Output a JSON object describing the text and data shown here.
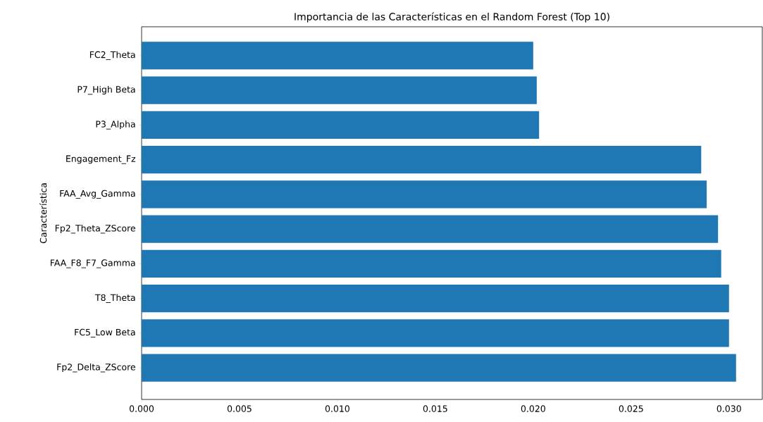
{
  "chart_data": {
    "type": "bar",
    "orientation": "horizontal",
    "title": "Importancia de las Características en el Random Forest (Top 10)",
    "ylabel": "Característica",
    "categories": [
      "FC2_Theta",
      "P7_High Beta",
      "P3_Alpha",
      "Engagement_Fz",
      "FAA_Avg_Gamma",
      "Fp2_Theta_ZScore",
      "FAA_F8_F7_Gamma",
      "T8_Theta",
      "FC5_Low Beta",
      "Fp2_Delta_ZScore"
    ],
    "values": [
      0.02,
      0.02018,
      0.0203,
      0.02858,
      0.02886,
      0.02944,
      0.0296,
      0.03,
      0.03,
      0.03036
    ],
    "color": "#1f77b4",
    "xlim": [
      0,
      0.0317
    ],
    "xticks": [
      {
        "value": 0,
        "label": "0.000"
      },
      {
        "value": 0.005,
        "label": "0.005"
      },
      {
        "value": 0.01,
        "label": "0.010"
      },
      {
        "value": 0.015,
        "label": "0.015"
      },
      {
        "value": 0.02,
        "label": "0.020"
      },
      {
        "value": 0.025,
        "label": "0.025"
      },
      {
        "value": 0.03,
        "label": "0.030"
      }
    ],
    "grid": false
  }
}
